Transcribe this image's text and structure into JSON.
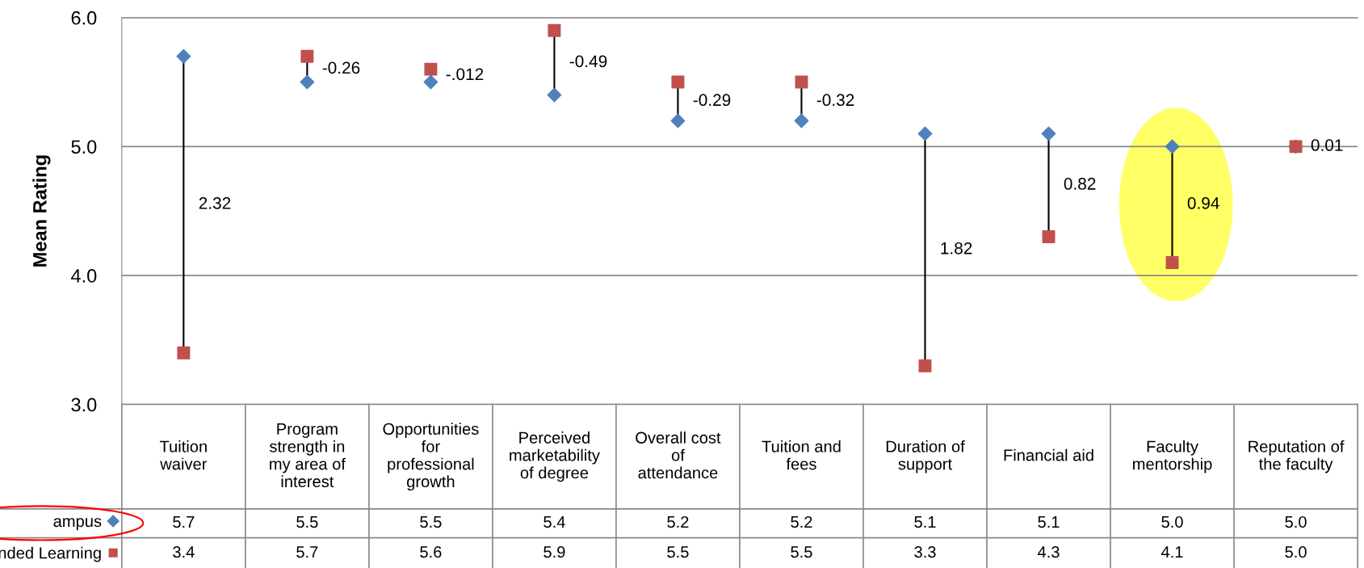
{
  "chart_data": {
    "type": "scatter",
    "ylabel": "Mean Rating",
    "categories": [
      "Tuition\nwaiver",
      "Program\nstrength in\nmy area of\ninterest",
      "Opportunities\nfor\nprofessional\ngrowth",
      "Perceived\nmarketability\nof degree",
      "Overall cost\nof\nattendance",
      "Tuition and\nfees",
      "Duration of\nsupport",
      "Financial aid",
      "Faculty\nmentorship",
      "Reputation of\nthe faculty"
    ],
    "series": [
      {
        "name": "ampus",
        "color": "#4f81bd",
        "marker": "diamond",
        "values": [
          5.7,
          5.5,
          5.5,
          5.4,
          5.2,
          5.2,
          5.1,
          5.1,
          5.0,
          5.0
        ],
        "value_labels": [
          "5.7",
          "5.5",
          "5.5",
          "5.4",
          "5.2",
          "5.2",
          "5.1",
          "5.1",
          "5.0",
          "5.0"
        ]
      },
      {
        "name": "nded Learning",
        "color": "#c0504d",
        "marker": "square",
        "values": [
          3.4,
          5.7,
          5.6,
          5.9,
          5.5,
          5.5,
          3.3,
          4.3,
          4.1,
          5.0
        ],
        "value_labels": [
          "3.4",
          "5.7",
          "5.6",
          "5.9",
          "5.5",
          "5.5",
          "3.3",
          "4.3",
          "4.1",
          "5.0"
        ]
      }
    ],
    "ylim": [
      3,
      6
    ],
    "yticks": [
      {
        "value": 3,
        "label": "3.0"
      },
      {
        "value": 4,
        "label": "4.0"
      },
      {
        "value": 5,
        "label": "5.0"
      },
      {
        "value": 6,
        "label": "6.0"
      }
    ],
    "grid": "y",
    "legend": "bottom left",
    "annotations": [
      "2.32",
      "-0.26",
      "-.012",
      "-0.49",
      "-0.29",
      "-0.32",
      "1.82",
      "0.82",
      "0.94",
      "0.01"
    ]
  }
}
